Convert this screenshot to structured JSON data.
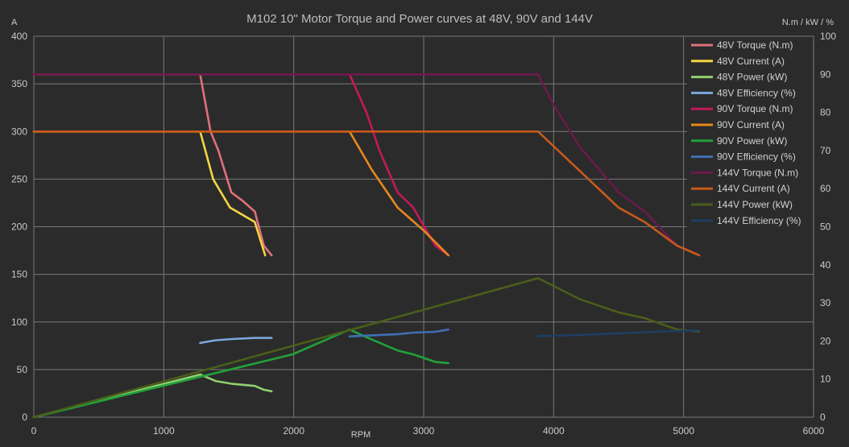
{
  "chart_data": {
    "type": "line",
    "title": "M102 10\" Motor Torque and Power curves at 48V, 90V and 144V",
    "xlabel": "RPM",
    "ylabel_left": "A",
    "ylabel_right": "N.m / kW / %",
    "xlim": [
      0,
      6000
    ],
    "ylim_left": [
      0,
      400
    ],
    "ylim_right": [
      0,
      100
    ],
    "x_ticks": [
      "0",
      "1000",
      "2000",
      "3000",
      "4000",
      "5000",
      "6000"
    ],
    "y_left_ticks": [
      "0",
      "50",
      "100",
      "150",
      "200",
      "250",
      "300",
      "350",
      "400"
    ],
    "y_right_ticks": [
      "0",
      "10",
      "20",
      "30",
      "40",
      "50",
      "60",
      "70",
      "80",
      "90",
      "100"
    ],
    "grid": true,
    "legend_position": "top-right",
    "series": [
      {
        "name": "48V Torque (N.m)",
        "axis": "right",
        "color": "#e0707a",
        "x": [
          0,
          1280,
          1360,
          1420,
          1520,
          1600,
          1700,
          1770,
          1830
        ],
        "y": [
          90,
          90,
          75,
          70,
          59,
          57,
          54,
          45,
          42.5
        ]
      },
      {
        "name": "48V Current (A)",
        "axis": "left",
        "color": "#f5d442",
        "x": [
          0,
          1280,
          1380,
          1510,
          1700,
          1780
        ],
        "y": [
          300,
          300,
          250,
          220,
          205,
          170
        ]
      },
      {
        "name": "48V Power (kW)",
        "axis": "right",
        "color": "#8fcf70",
        "x": [
          0,
          1280,
          1400,
          1520,
          1700,
          1770,
          1830
        ],
        "y": [
          0,
          11.2,
          9.5,
          8.8,
          8.2,
          7.2,
          6.8
        ]
      },
      {
        "name": "48V Efficiency (%)",
        "axis": "right",
        "color": "#7ba7dc",
        "x": [
          1280,
          1400,
          1520,
          1700,
          1830
        ],
        "y": [
          19.5,
          20.2,
          20.5,
          20.8,
          20.8
        ]
      },
      {
        "name": "90V Torque (N.m)",
        "axis": "right",
        "color": "#c2185b",
        "x": [
          0,
          2430,
          2560,
          2660,
          2800,
          2920,
          3090,
          3190
        ],
        "y": [
          90,
          90,
          80,
          70,
          59,
          55,
          45,
          42.5
        ]
      },
      {
        "name": "90V Current (A)",
        "axis": "left",
        "color": "#e8871e",
        "x": [
          0,
          2430,
          2600,
          2800,
          3000,
          3190
        ],
        "y": [
          300,
          300,
          260,
          220,
          196,
          170
        ]
      },
      {
        "name": "90V Power (kW)",
        "axis": "right",
        "color": "#22a03a",
        "x": [
          0,
          1990,
          2430,
          2560,
          2800,
          2920,
          3090,
          3190
        ],
        "y": [
          0,
          16.5,
          23,
          21,
          17.5,
          16.5,
          14.5,
          14.2
        ]
      },
      {
        "name": "90V Efficiency (%)",
        "axis": "right",
        "color": "#3f6fb5",
        "x": [
          2430,
          2800,
          2920,
          3090,
          3190
        ],
        "y": [
          21.2,
          21.8,
          22.2,
          22.4,
          23
        ]
      },
      {
        "name": "144V Torque (N.m)",
        "axis": "right",
        "color": "#6b1a4b",
        "x": [
          0,
          3880,
          4000,
          4200,
          4500,
          4700,
          4950,
          5120
        ],
        "y": [
          90,
          90,
          82,
          71,
          59,
          54,
          45,
          42.5
        ]
      },
      {
        "name": "144V Current (A)",
        "axis": "left",
        "color": "#c8591b",
        "x": [
          0,
          3880,
          4500,
          4700,
          4950,
          5120
        ],
        "y": [
          300,
          300,
          220,
          205,
          180,
          170
        ]
      },
      {
        "name": "144V Power (kW)",
        "axis": "right",
        "color": "#4a5e1a",
        "x": [
          0,
          3880,
          4200,
          4500,
          4700,
          4950,
          5120
        ],
        "y": [
          0,
          36.5,
          31,
          27.5,
          26,
          23,
          22.5
        ]
      },
      {
        "name": "144V Efficiency (%)",
        "axis": "right",
        "color": "#1f3e63",
        "x": [
          3880,
          4200,
          4500,
          4700,
          4950,
          5120
        ],
        "y": [
          21.3,
          21.6,
          22,
          22.3,
          22.6,
          22.8
        ]
      }
    ]
  }
}
